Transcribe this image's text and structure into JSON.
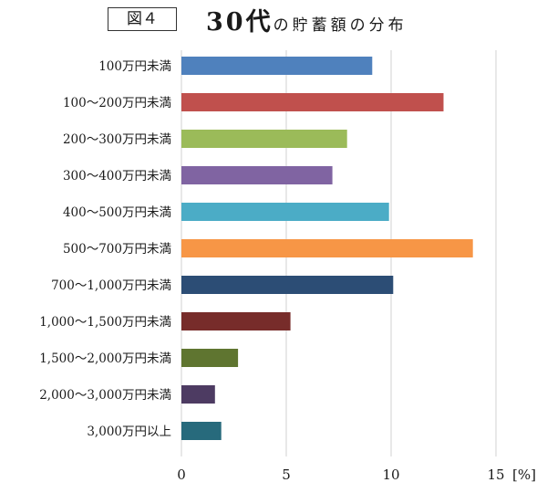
{
  "header": {
    "figure_label": "図４",
    "title_main": "30代",
    "title_sub": "の貯蓄額の分布"
  },
  "chart_data": {
    "type": "bar",
    "orientation": "horizontal",
    "categories": [
      "100万円未満",
      "100～200万円未満",
      "200～300万円未満",
      "300～400万円未満",
      "400～500万円未満",
      "500～700万円未満",
      "700～1,000万円未満",
      "1,000～1,500万円未満",
      "1,500～2,000万円未満",
      "2,000～3,000万円未満",
      "3,000万円以上"
    ],
    "values": [
      9.1,
      12.5,
      7.9,
      7.2,
      9.9,
      13.9,
      10.1,
      5.2,
      2.7,
      1.6,
      1.9
    ],
    "colors": [
      "#4f81bd",
      "#c0504d",
      "#9bbb59",
      "#8064a2",
      "#4bacc6",
      "#f79646",
      "#2c4d75",
      "#772c2a",
      "#5f7530",
      "#4d3b62",
      "#276a7c"
    ],
    "xlim": [
      0,
      17
    ],
    "xticks": [
      "0",
      "5",
      "10",
      "15"
    ],
    "xtick_values": [
      0,
      5,
      10,
      15
    ],
    "unit_label": "[%]",
    "grid": true
  }
}
